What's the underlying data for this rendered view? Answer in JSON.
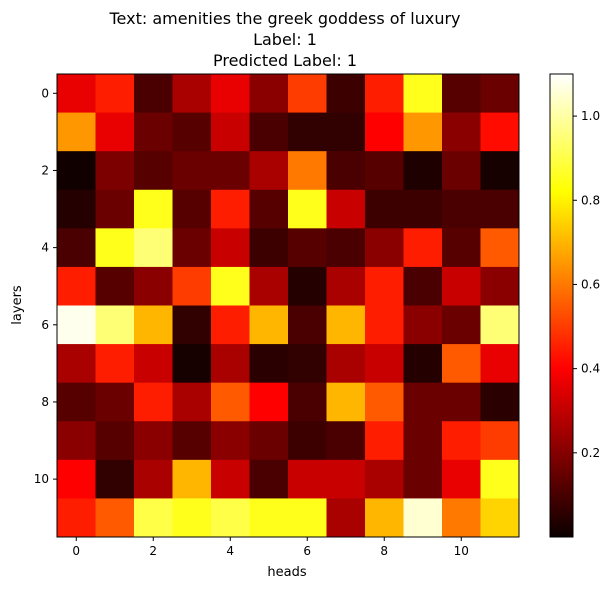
{
  "chart_data": {
    "type": "heatmap",
    "title_lines": [
      "Text: amenities the greek goddess of luxury",
      "Label: 1",
      "Predicted Label: 1"
    ],
    "xlabel": "heads",
    "ylabel": "layers",
    "x_ticks": [
      0,
      2,
      4,
      6,
      8,
      10
    ],
    "y_ticks": [
      0,
      2,
      4,
      6,
      8,
      10
    ],
    "colormap": "hot",
    "colorbar": {
      "vmin": 0.0,
      "vmax": 1.1,
      "ticks": [
        0.2,
        0.4,
        0.6,
        0.8,
        1.0
      ],
      "tick_labels": [
        "0.2",
        "0.4",
        "0.6",
        "0.8",
        "1.0"
      ]
    },
    "values": [
      [
        0.35,
        0.45,
        0.1,
        0.25,
        0.35,
        0.2,
        0.5,
        0.08,
        0.45,
        0.85,
        0.12,
        0.15
      ],
      [
        0.65,
        0.35,
        0.15,
        0.12,
        0.3,
        0.1,
        0.06,
        0.06,
        0.4,
        0.65,
        0.2,
        0.42
      ],
      [
        0.01,
        0.18,
        0.12,
        0.15,
        0.15,
        0.25,
        0.6,
        0.1,
        0.12,
        0.03,
        0.15,
        0.02
      ],
      [
        0.04,
        0.15,
        0.85,
        0.12,
        0.45,
        0.12,
        0.85,
        0.3,
        0.08,
        0.08,
        0.1,
        0.1
      ],
      [
        0.1,
        0.85,
        0.95,
        0.15,
        0.3,
        0.08,
        0.12,
        0.1,
        0.2,
        0.45,
        0.12,
        0.55
      ],
      [
        0.45,
        0.12,
        0.2,
        0.5,
        0.85,
        0.25,
        0.04,
        0.25,
        0.45,
        0.1,
        0.3,
        0.2
      ],
      [
        1.08,
        0.95,
        0.7,
        0.06,
        0.45,
        0.7,
        0.1,
        0.7,
        0.45,
        0.2,
        0.15,
        0.95
      ],
      [
        0.25,
        0.45,
        0.3,
        0.02,
        0.25,
        0.05,
        0.06,
        0.25,
        0.3,
        0.04,
        0.55,
        0.35
      ],
      [
        0.12,
        0.15,
        0.45,
        0.25,
        0.55,
        0.4,
        0.1,
        0.7,
        0.55,
        0.15,
        0.15,
        0.05
      ],
      [
        0.2,
        0.12,
        0.2,
        0.12,
        0.2,
        0.15,
        0.08,
        0.1,
        0.45,
        0.15,
        0.45,
        0.5
      ],
      [
        0.4,
        0.06,
        0.25,
        0.7,
        0.3,
        0.1,
        0.3,
        0.3,
        0.25,
        0.15,
        0.35,
        0.85
      ],
      [
        0.45,
        0.55,
        0.9,
        0.85,
        0.9,
        0.85,
        0.85,
        0.25,
        0.7,
        1.05,
        0.6,
        0.75
      ]
    ]
  }
}
